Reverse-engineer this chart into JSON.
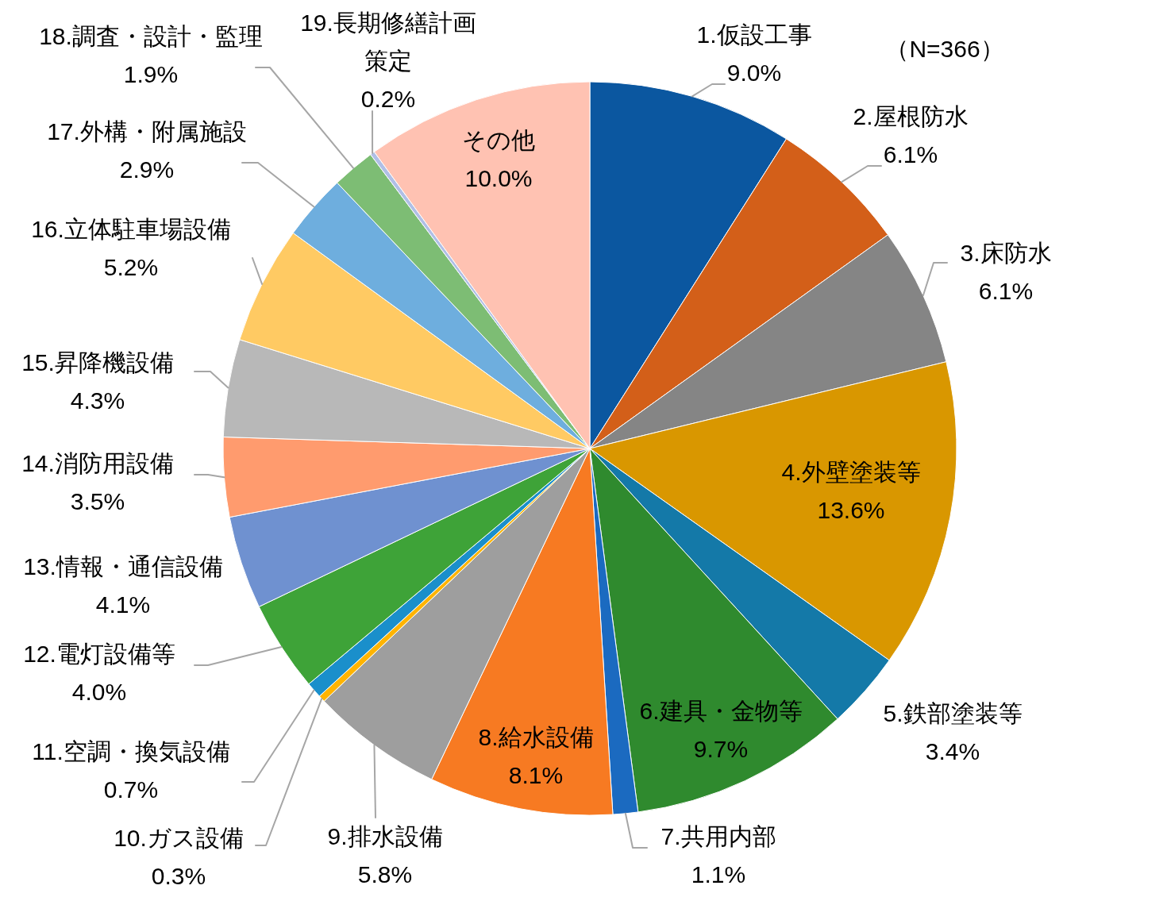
{
  "chart_data": {
    "type": "pie",
    "categories": [
      "1.仮設工事",
      "2.屋根防水",
      "3.床防水",
      "4.外壁塗装等",
      "5.鉄部塗装等",
      "6.建具・金物等",
      "7.共用内部",
      "8.給水設備",
      "9.排水設備",
      "10.ガス設備",
      "11.空調・換気設備",
      "12.電灯設備等",
      "13.情報・通信設備",
      "14.消防用設備",
      "15.昇降機設備",
      "16.立体駐車場設備",
      "17.外構・附属施設",
      "18.調査・設計・監理",
      "19.長期修繕計画策定",
      "その他"
    ],
    "values": [
      9.0,
      6.1,
      6.1,
      13.6,
      3.4,
      9.7,
      1.1,
      8.1,
      5.8,
      0.3,
      0.7,
      4.0,
      4.1,
      3.5,
      4.3,
      5.2,
      2.9,
      1.9,
      0.2,
      10.0
    ],
    "value_labels": [
      "9.0%",
      "6.1%",
      "6.1%",
      "13.6%",
      "3.4%",
      "9.7%",
      "1.1%",
      "8.1%",
      "5.8%",
      "0.3%",
      "0.7%",
      "4.0%",
      "4.1%",
      "3.5%",
      "4.3%",
      "5.2%",
      "2.9%",
      "1.9%",
      "0.2%",
      "10.0%"
    ],
    "colors": [
      "#0b57a0",
      "#d35f19",
      "#858585",
      "#d99700",
      "#1479a8",
      "#2f8a2e",
      "#1b6ac0",
      "#f77a22",
      "#9e9e9e",
      "#ffb400",
      "#1a8fcb",
      "#3ea338",
      "#6f91d0",
      "#ff9b6e",
      "#b8b8b8",
      "#ffca63",
      "#6eaede",
      "#7dbd74",
      "#b0bfe6",
      "#ffc2b2"
    ],
    "annotations": [
      "（N=366）"
    ]
  }
}
